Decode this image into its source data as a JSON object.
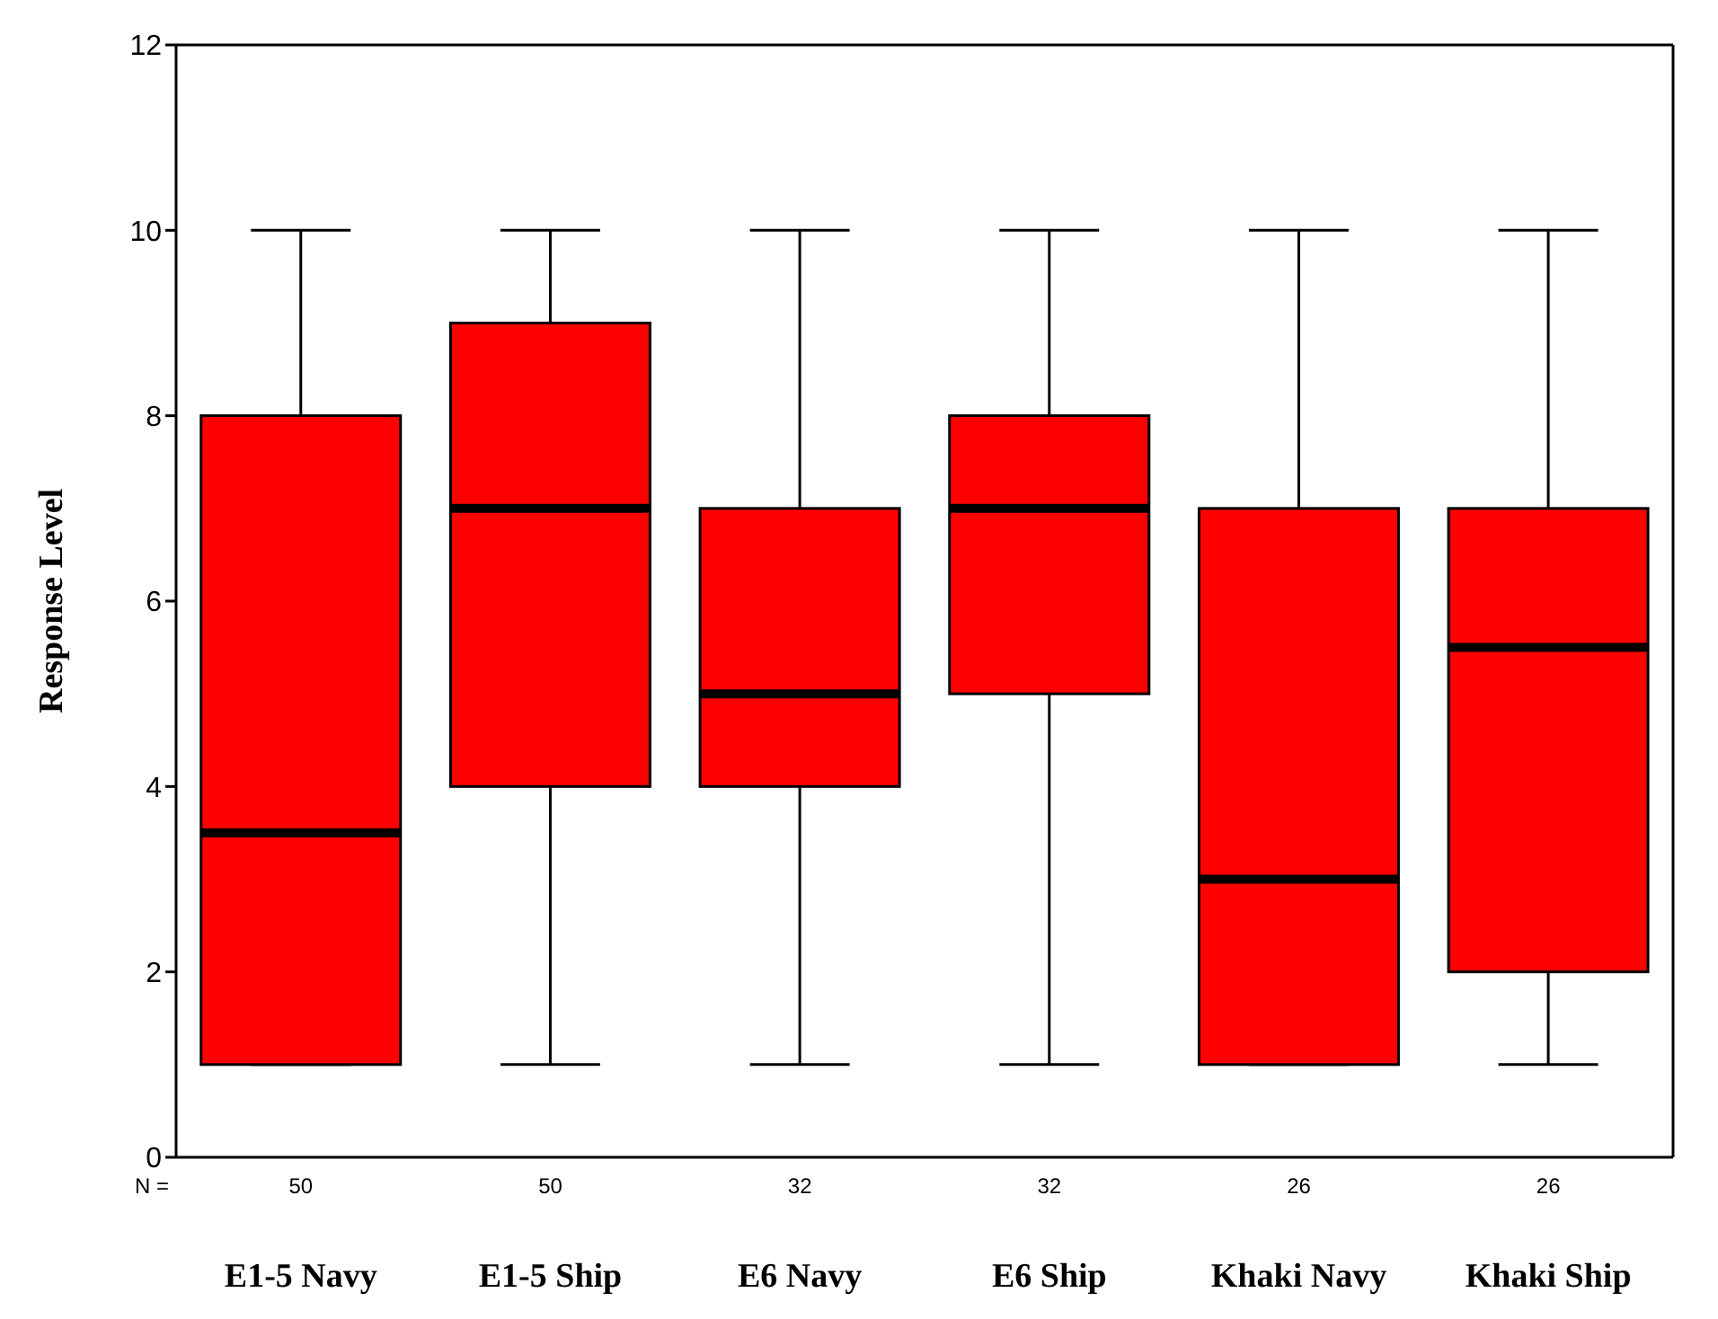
{
  "chart_data": {
    "type": "box",
    "ylabel": "Response Level",
    "categories": [
      "E1-5 Navy",
      "E1-5 Ship",
      "E6 Navy",
      "E6 Ship",
      "Khaki Navy",
      "Khaki Ship"
    ],
    "color": "#ff0000",
    "ylim": [
      0,
      12
    ],
    "yticks": [
      0,
      2,
      4,
      6,
      8,
      10,
      12
    ],
    "grid": false,
    "boxes": [
      {
        "low": 1,
        "q1": 1,
        "median": 3.5,
        "q3": 8,
        "high": 10
      },
      {
        "low": 1,
        "q1": 4,
        "median": 7,
        "q3": 9,
        "high": 10
      },
      {
        "low": 1,
        "q1": 4,
        "median": 5,
        "q3": 7,
        "high": 10
      },
      {
        "low": 1,
        "q1": 5,
        "median": 7,
        "q3": 8,
        "high": 10
      },
      {
        "low": 1,
        "q1": 1,
        "median": 3,
        "q3": 7,
        "high": 10
      },
      {
        "low": 1,
        "q1": 2,
        "median": 5.5,
        "q3": 7,
        "high": 10
      }
    ],
    "annotations": [
      "N =",
      "50",
      "50",
      "32",
      "32",
      "26",
      "26"
    ]
  }
}
